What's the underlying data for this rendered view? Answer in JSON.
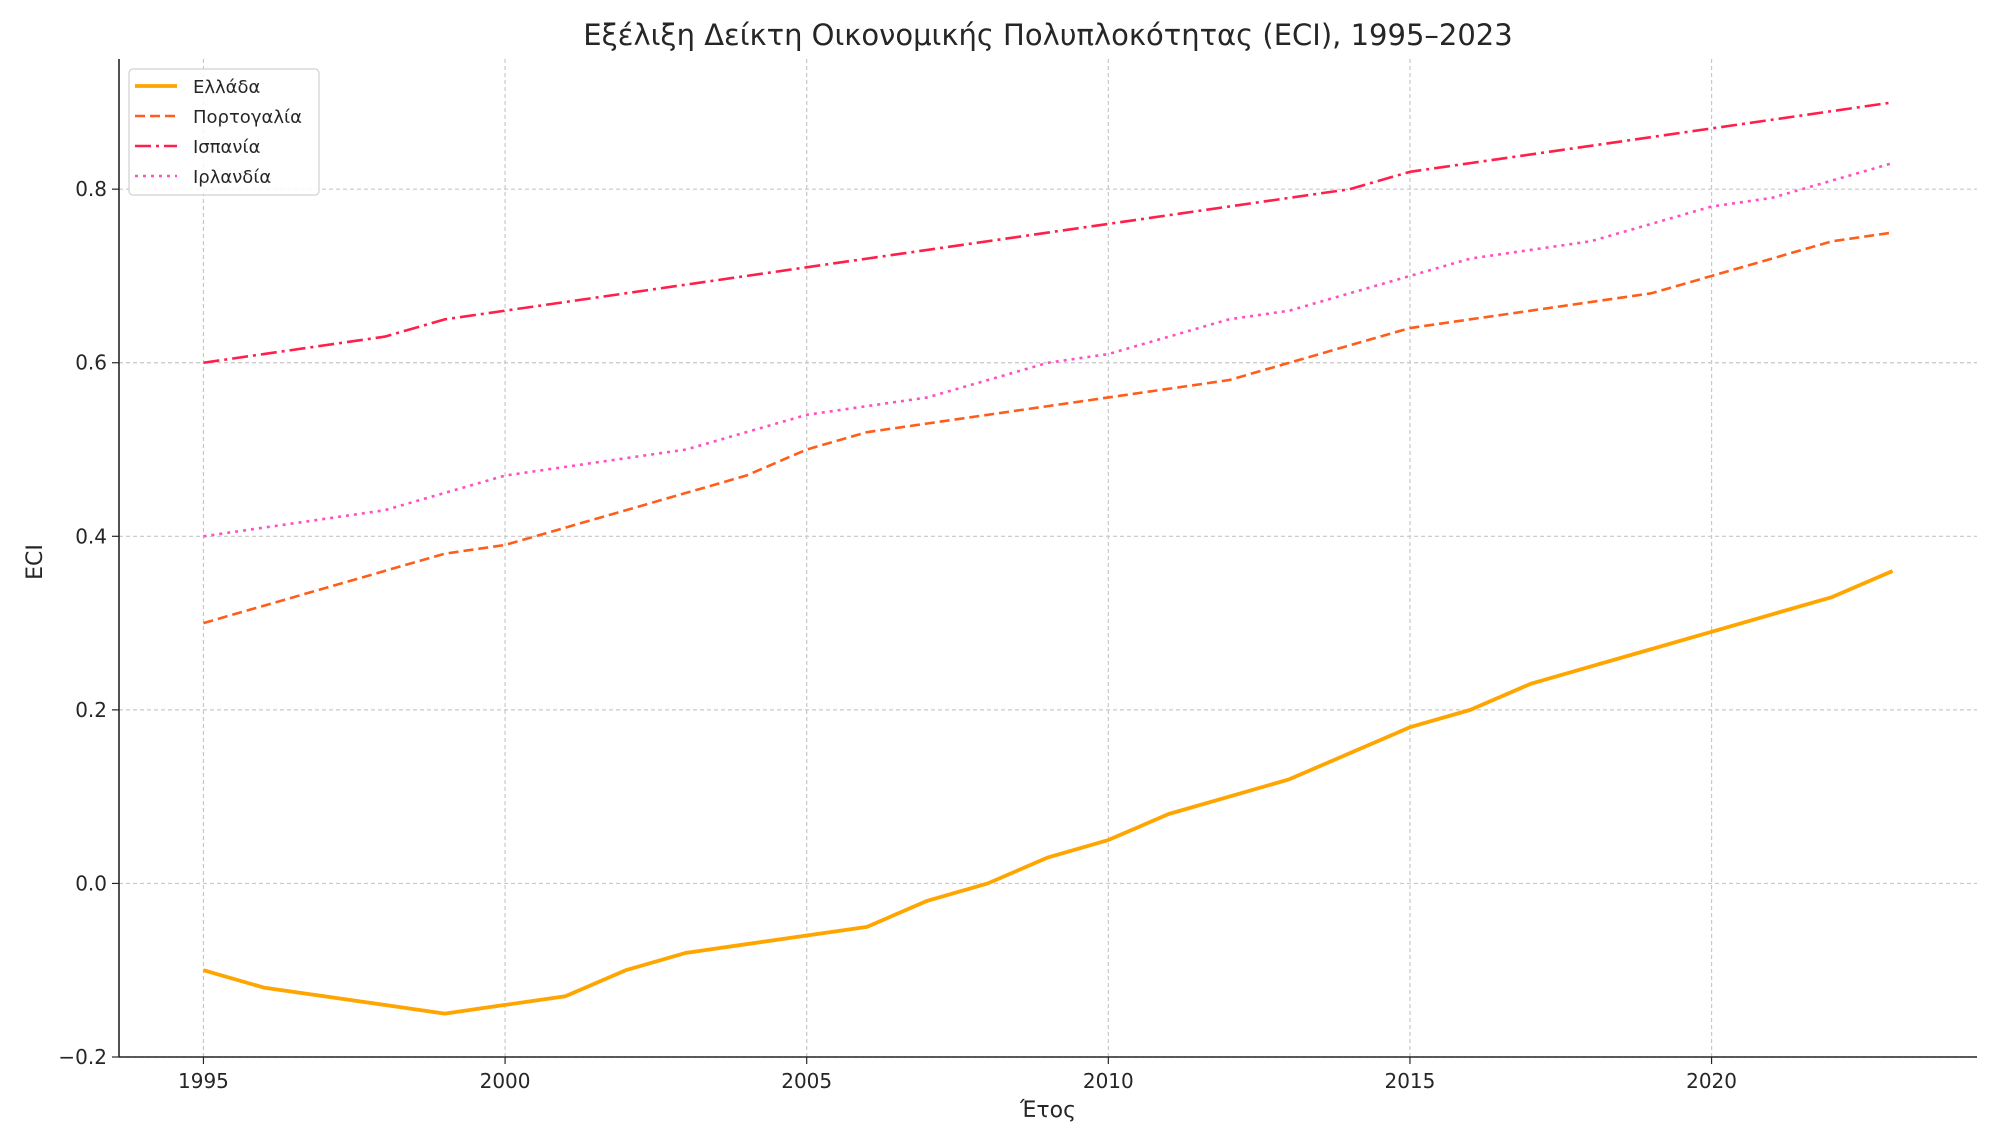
{
  "chart_data": {
    "type": "line",
    "title": "Εξέλιξη Δείκτη Οικονομικής Πολυπλοκότητας (ECI), 1995–2023",
    "xlabel": "Έτος",
    "ylabel": "ECI",
    "xlim": [
      1993.6,
      2024.4
    ],
    "ylim": [
      -0.2,
      0.95
    ],
    "xticks": [
      1995,
      2000,
      2005,
      2010,
      2015,
      2020
    ],
    "yticks": [
      -0.2,
      0.0,
      0.2,
      0.4,
      0.6,
      0.8
    ],
    "ytick_labels": [
      "−0.2",
      "0.0",
      "0.2",
      "0.4",
      "0.6",
      "0.8"
    ],
    "grid": true,
    "legend_position": "top-left",
    "x": [
      1995,
      1996,
      1997,
      1998,
      1999,
      2000,
      2001,
      2002,
      2003,
      2004,
      2005,
      2006,
      2007,
      2008,
      2009,
      2010,
      2011,
      2012,
      2013,
      2014,
      2015,
      2016,
      2017,
      2018,
      2019,
      2020,
      2021,
      2022,
      2023
    ],
    "series": [
      {
        "name": "Ελλάδα",
        "color": "#FFA500",
        "style": "solid",
        "values": [
          -0.1,
          -0.12,
          -0.13,
          -0.14,
          -0.15,
          -0.14,
          -0.13,
          -0.1,
          -0.08,
          -0.07,
          -0.06,
          -0.05,
          -0.02,
          0.0,
          0.03,
          0.05,
          0.08,
          0.1,
          0.12,
          0.15,
          0.18,
          0.2,
          0.23,
          0.25,
          0.27,
          0.29,
          0.31,
          0.33,
          0.36
        ]
      },
      {
        "name": "Πορτογαλία",
        "color": "#FF5E1A",
        "style": "dashed",
        "values": [
          0.3,
          0.32,
          0.34,
          0.36,
          0.38,
          0.39,
          0.41,
          0.43,
          0.45,
          0.47,
          0.5,
          0.52,
          0.53,
          0.54,
          0.55,
          0.56,
          0.57,
          0.58,
          0.6,
          0.62,
          0.64,
          0.65,
          0.66,
          0.67,
          0.68,
          0.7,
          0.72,
          0.74,
          0.75
        ]
      },
      {
        "name": "Ισπανία",
        "color": "#FF1F4B",
        "style": "dashdot",
        "values": [
          0.6,
          0.61,
          0.62,
          0.63,
          0.65,
          0.66,
          0.67,
          0.68,
          0.69,
          0.7,
          0.71,
          0.72,
          0.73,
          0.74,
          0.75,
          0.76,
          0.77,
          0.78,
          0.79,
          0.8,
          0.82,
          0.83,
          0.84,
          0.85,
          0.86,
          0.87,
          0.88,
          0.89,
          0.9
        ]
      },
      {
        "name": "Ιρλανδία",
        "color": "#FF4FC0",
        "style": "dotted",
        "values": [
          0.4,
          0.41,
          0.42,
          0.43,
          0.45,
          0.47,
          0.48,
          0.49,
          0.5,
          0.52,
          0.54,
          0.55,
          0.56,
          0.58,
          0.6,
          0.61,
          0.63,
          0.65,
          0.66,
          0.68,
          0.7,
          0.72,
          0.73,
          0.74,
          0.76,
          0.78,
          0.79,
          0.81,
          0.83
        ]
      }
    ]
  }
}
